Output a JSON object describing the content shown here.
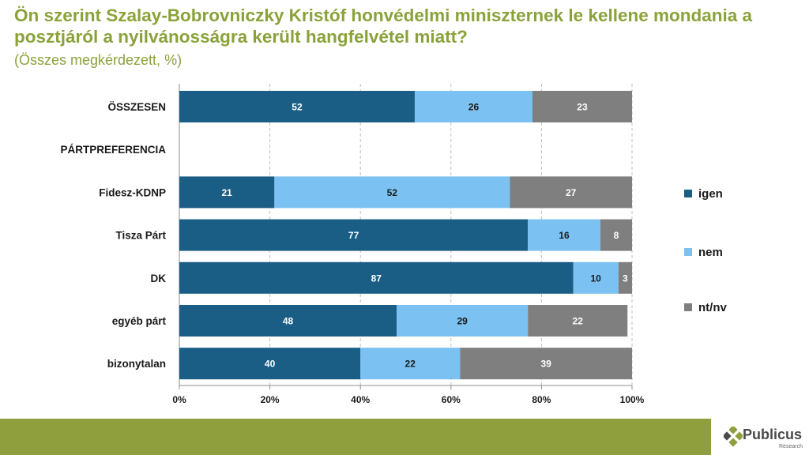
{
  "title": "Ön szerint Szalay-Bobrovniczky Kristóf honvédelmi miniszternek le kellene mondania a posztjáról a nyilvánosságra került hangfelvétel miatt?",
  "subtitle": "(Összes megkérdezett, %)",
  "logo": {
    "name": "Publicus",
    "sub": "Research"
  },
  "colors": {
    "igen": "#1b5e85",
    "nem": "#7bc1f1",
    "ntnv": "#7f7f7f",
    "title": "#8aa23a",
    "footer": "#8f9f3e"
  },
  "chart_data": {
    "type": "bar",
    "orientation": "horizontal",
    "stacked": true,
    "categories": [
      "ÖSSZESEN",
      "PÁRTPREFERENCIA",
      "Fidesz-KDNP",
      "Tisza Párt",
      "DK",
      "egyéb párt",
      "bizonytalan"
    ],
    "series": [
      {
        "name": "igen",
        "values": [
          52,
          null,
          21,
          77,
          87,
          48,
          40
        ]
      },
      {
        "name": "nem",
        "values": [
          26,
          null,
          52,
          16,
          10,
          29,
          22
        ]
      },
      {
        "name": "nt/nv",
        "values": [
          23,
          null,
          27,
          8,
          3,
          22,
          39
        ]
      }
    ],
    "xlim": [
      0,
      100
    ],
    "xticks": [
      "0%",
      "20%",
      "40%",
      "60%",
      "80%",
      "100%"
    ],
    "grid": "vertical dashed",
    "legend_position": "right"
  }
}
